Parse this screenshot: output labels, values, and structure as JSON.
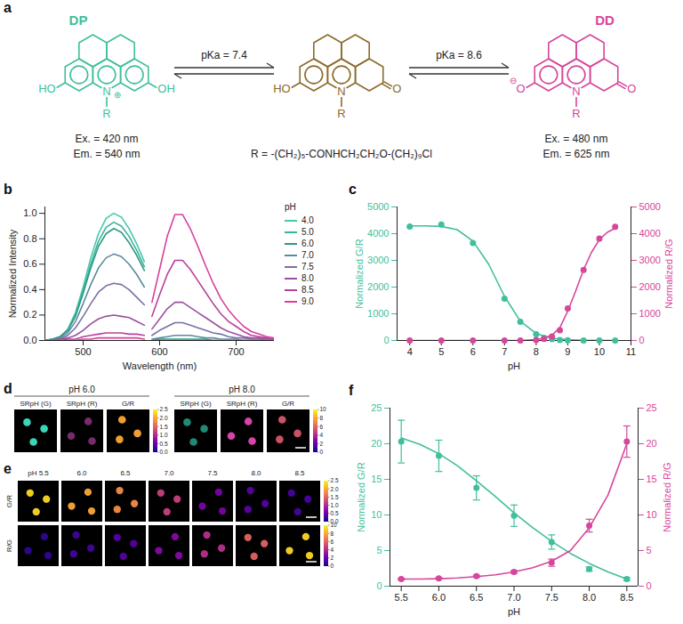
{
  "panel_a": {
    "panel": "a",
    "species": [
      {
        "label": "DP",
        "color": "#3fbf9c",
        "left": "HO",
        "right": "OH",
        "n_charge": "⊕",
        "n_label": "N",
        "substituent": "R",
        "excitation": "Ex. = 420 nm",
        "emission": "Em. = 540 nm"
      },
      {
        "color": "#8c6a2c",
        "left": "HO",
        "right": "O",
        "n_label": "N",
        "substituent": "R"
      },
      {
        "label": "DD",
        "color": "#d6469b",
        "left": "O",
        "left_charge": "⊖",
        "right": "O",
        "n_label": "N",
        "substituent": "R",
        "excitation": "Ex. = 480 nm",
        "emission": "Em. = 625 nm"
      }
    ],
    "equilibria": [
      "pKa = 7.4",
      "pKa = 8.6"
    ],
    "substituent_definition": "R = -(CH₂)₅-CONHCH₂CH₂O-(CH₂)₉Cl"
  },
  "chart_data": [
    {
      "panel": "b",
      "type": "line",
      "xlabel": "Wavelength (nm)",
      "ylabel": "Normalized Intensity",
      "x": [
        450,
        460,
        470,
        480,
        490,
        500,
        510,
        520,
        530,
        540,
        550,
        560,
        570,
        580,
        585,
        590,
        600,
        610,
        620,
        630,
        640,
        650,
        660,
        670,
        680,
        690,
        700,
        710,
        720,
        730,
        740,
        750
      ],
      "xlim": [
        450,
        750
      ],
      "xticks": [
        500,
        600,
        700
      ],
      "ylim": [
        0,
        1.05
      ],
      "yticks": [
        {
          "value": 0,
          "label": "0.0"
        },
        0.2,
        0.4,
        0.6,
        0.8,
        {
          "value": 1,
          "label": "1.0"
        }
      ],
      "legend": "right",
      "legend_title": "pH",
      "series": [
        {
          "name": "4.0",
          "color": "#48c9a9",
          "values": [
            0,
            0.01,
            0.03,
            0.09,
            0.22,
            0.42,
            0.65,
            0.84,
            0.96,
            1,
            0.97,
            0.88,
            0.76,
            0.62,
            null,
            0,
            0,
            0,
            0,
            0,
            0,
            0,
            0,
            0,
            0,
            0,
            0,
            0,
            0,
            0,
            0,
            0
          ]
        },
        {
          "name": "5.0",
          "color": "#3bb39a",
          "values": [
            0,
            0.01,
            0.03,
            0.08,
            0.2,
            0.39,
            0.6,
            0.78,
            0.89,
            0.93,
            0.9,
            0.82,
            0.71,
            0.58,
            null,
            0,
            0,
            0,
            0,
            0,
            0,
            0,
            0,
            0,
            0,
            0,
            0,
            0,
            0,
            0,
            0,
            0
          ]
        },
        {
          "name": "6.0",
          "color": "#2e9a87",
          "values": [
            0,
            0.01,
            0.03,
            0.08,
            0.19,
            0.37,
            0.57,
            0.74,
            0.84,
            0.88,
            0.85,
            0.77,
            0.67,
            0.55,
            null,
            0,
            0.01,
            0.01,
            0.01,
            0.01,
            0.01,
            0.01,
            0.01,
            0,
            0,
            0,
            0,
            0,
            0,
            0,
            0,
            0
          ]
        },
        {
          "name": "7.0",
          "color": "#5b8aa0",
          "values": [
            0,
            0.01,
            0.02,
            0.06,
            0.15,
            0.29,
            0.44,
            0.57,
            0.65,
            0.68,
            0.66,
            0.6,
            0.52,
            0.42,
            null,
            0.01,
            0.02,
            0.03,
            0.04,
            0.04,
            0.04,
            0.03,
            0.02,
            0.02,
            0.01,
            0.01,
            0.01,
            0,
            0,
            0,
            0,
            0
          ]
        },
        {
          "name": "7.5",
          "color": "#7a70a4",
          "values": [
            0,
            0,
            0.01,
            0.04,
            0.1,
            0.19,
            0.29,
            0.38,
            0.43,
            0.45,
            0.44,
            0.4,
            0.34,
            0.28,
            null,
            0.04,
            0.08,
            0.11,
            0.14,
            0.14,
            0.12,
            0.1,
            0.08,
            0.06,
            0.05,
            0.03,
            0.02,
            0.02,
            0.01,
            0.01,
            0,
            0
          ]
        },
        {
          "name": "8.0",
          "color": "#9a509f",
          "values": [
            0,
            0,
            0.01,
            0.02,
            0.04,
            0.08,
            0.13,
            0.17,
            0.19,
            0.2,
            0.19,
            0.18,
            0.15,
            0.12,
            null,
            0.09,
            0.17,
            0.25,
            0.3,
            0.3,
            0.26,
            0.22,
            0.18,
            0.14,
            0.1,
            0.07,
            0.05,
            0.03,
            0.02,
            0.02,
            0.01,
            0.01
          ]
        },
        {
          "name": "8.5",
          "color": "#b9409b",
          "values": [
            0,
            0,
            0,
            0.01,
            0.01,
            0.03,
            0.04,
            0.05,
            0.06,
            0.06,
            0.06,
            0.05,
            0.05,
            0.04,
            null,
            0.19,
            0.36,
            0.52,
            0.63,
            0.63,
            0.56,
            0.47,
            0.38,
            0.29,
            0.21,
            0.15,
            0.11,
            0.07,
            0.04,
            0.03,
            0.02,
            0.01
          ]
        },
        {
          "name": "9.0",
          "color": "#d8409a",
          "values": [
            0,
            0,
            0,
            0,
            0,
            0.01,
            0.01,
            0.02,
            0.02,
            0.02,
            0.02,
            0.02,
            0.02,
            0.01,
            null,
            0.3,
            0.56,
            0.82,
            0.99,
            0.99,
            0.88,
            0.74,
            0.59,
            0.45,
            0.33,
            0.24,
            0.17,
            0.11,
            0.07,
            0.05,
            0.03,
            0.02
          ]
        }
      ]
    },
    {
      "panel": "c",
      "type": "scatter",
      "xlabel": "pH",
      "ylabel": "Normalized G/R",
      "y2label": "Normalized R/G",
      "x": [
        4,
        5,
        6,
        7,
        7.5,
        8,
        8.25,
        8.5,
        8.75,
        9,
        9.5,
        10,
        10.5
      ],
      "xlim": [
        3.6,
        11
      ],
      "xticks": [
        4,
        5,
        6,
        7,
        8,
        9,
        10,
        11
      ],
      "ylim": [
        0,
        5000
      ],
      "yticks": [
        0,
        1000,
        2000,
        3000,
        4000,
        5000
      ],
      "y2lim": [
        0,
        5000
      ],
      "y2ticks": [
        0,
        1000,
        2000,
        3000,
        4000,
        5000
      ],
      "series": [
        {
          "color": "#3fbf9c",
          "marker": "circle",
          "values": [
            4270,
            4340,
            3650,
            1570,
            700,
            230,
            100,
            50,
            20,
            10,
            0,
            0,
            0
          ],
          "fit": {
            "x": [
              4,
              4.5,
              5,
              5.5,
              6,
              6.5,
              7,
              7.5,
              8,
              8.5,
              9,
              9.5,
              10,
              10.5
            ],
            "values": [
              4290,
              4290,
              4270,
              4150,
              3720,
              2850,
              1650,
              720,
              260,
              85,
              28,
              9,
              3,
              1
            ]
          }
        },
        {
          "color": "#d6469b",
          "marker": "circle",
          "axis": "y2",
          "values": [
            0,
            0,
            0,
            0,
            0,
            20,
            60,
            150,
            380,
            1200,
            2640,
            3820,
            4260
          ],
          "fit": {
            "x": [
              4,
              5,
              6,
              7,
              7.5,
              8,
              8.25,
              8.5,
              8.75,
              9,
              9.25,
              9.5,
              9.75,
              10,
              10.25,
              10.5
            ],
            "values": [
              0,
              0,
              0,
              0,
              2,
              30,
              80,
              200,
              480,
              1100,
              1850,
              2650,
              3300,
              3780,
              4050,
              4200
            ]
          }
        }
      ]
    },
    {
      "panel": "f",
      "type": "scatter",
      "xlabel": "pH",
      "ylabel": "Normalized G/R",
      "y2label": "Normalized R/G",
      "x": [
        5.5,
        6,
        6.5,
        7,
        7.5,
        8,
        8.5
      ],
      "xlim": [
        5.35,
        8.65
      ],
      "xticks": [
        5.5,
        {
          "value": 6,
          "label": "6.0"
        },
        6.5,
        {
          "value": 7,
          "label": "7.0"
        },
        7.5,
        {
          "value": 8,
          "label": "8.0"
        },
        8.5
      ],
      "ylim": [
        0,
        25
      ],
      "yticks": [
        0,
        5,
        10,
        15,
        20,
        25
      ],
      "y2lim": [
        0,
        25
      ],
      "y2ticks": [
        0,
        5,
        10,
        15,
        20,
        25
      ],
      "series": [
        {
          "color": "#3fbf9c",
          "marker": "circle",
          "values": [
            20.3,
            18.3,
            13.8,
            9.9,
            6.2,
            2.4,
            1.0
          ],
          "errors": [
            3.0,
            2.2,
            1.7,
            1.5,
            1.0,
            0.3,
            0.2
          ],
          "fit": {
            "x": [
              5.5,
              5.75,
              6,
              6.25,
              6.5,
              6.75,
              7,
              7.25,
              7.5,
              7.75,
              8,
              8.25,
              8.5
            ],
            "values": [
              20.8,
              19.9,
              18.6,
              16.9,
              14.8,
              12.6,
              10.3,
              8.2,
              6.3,
              4.6,
              3.2,
              2.0,
              1.0
            ]
          }
        },
        {
          "color": "#d6469b",
          "marker": "circle",
          "axis": "y2",
          "values": [
            1.0,
            1.1,
            1.4,
            2.0,
            3.3,
            8.5,
            20.3
          ],
          "errors": [
            0.1,
            0.1,
            0.15,
            0.2,
            0.5,
            0.9,
            2.2
          ],
          "fit": {
            "x": [
              5.5,
              5.75,
              6,
              6.25,
              6.5,
              6.75,
              7,
              7.25,
              7.5,
              7.75,
              8,
              8.25,
              8.5
            ],
            "values": [
              1.0,
              1.0,
              1.05,
              1.15,
              1.35,
              1.6,
              2.0,
              2.6,
              3.5,
              5.0,
              8.2,
              12.8,
              20.0
            ]
          }
        }
      ]
    }
  ],
  "panel_d": {
    "panel": "d",
    "groups": [
      {
        "title": "pH 6.0",
        "images": [
          {
            "label": "SRpH (G)",
            "color": "#3fe0c2"
          },
          {
            "label": "SRpH (R)",
            "color": "#7d2d72"
          },
          {
            "label": "G/R",
            "value": 2.0
          }
        ],
        "colorbar": {
          "range": [
            0,
            2.5
          ],
          "ticks": [
            {
              "value": 0,
              "label": "0.0"
            },
            0.5,
            {
              "value": 1,
              "label": "1.0"
            },
            1.5,
            {
              "value": 2,
              "label": "2.0"
            },
            2.5
          ]
        }
      },
      {
        "title": "pH 8.0",
        "images": [
          {
            "label": "SRpH (G)",
            "color": "#228f7c"
          },
          {
            "label": "SRpH (R)",
            "color": "#e346b4"
          },
          {
            "label": "G/R",
            "value": 5.5
          }
        ],
        "colorbar": {
          "range": [
            0,
            10
          ],
          "ticks": [
            0,
            2,
            4,
            6,
            8,
            10
          ]
        }
      }
    ]
  },
  "panel_e": {
    "panel": "e",
    "columns": [
      "pH 5.5",
      "6.0",
      "6.5",
      "7.0",
      "7.5",
      "8.0",
      "8.5"
    ],
    "rows": [
      {
        "label": "G/R",
        "values": [
          2.3,
          2.0,
          1.8,
          1.2,
          0.6,
          0.4,
          0.3
        ],
        "colorbar": {
          "range": [
            0,
            2.5
          ],
          "ticks": [
            {
              "value": 0,
              "label": "0.0"
            },
            0.5,
            {
              "value": 1,
              "label": "1.0"
            },
            1.5,
            {
              "value": 2,
              "label": "2.0"
            },
            2.5
          ]
        }
      },
      {
        "label": "R/G",
        "values": [
          0.6,
          1.0,
          1.5,
          2.8,
          4.2,
          6.0,
          9.2
        ],
        "colorbar": {
          "range": [
            0,
            10
          ],
          "ticks": [
            0,
            2,
            4,
            6,
            8,
            10
          ]
        }
      }
    ]
  }
}
